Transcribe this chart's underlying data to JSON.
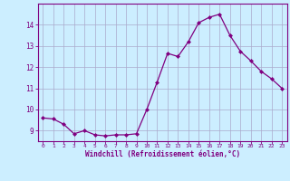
{
  "x": [
    0,
    1,
    2,
    3,
    4,
    5,
    6,
    7,
    8,
    9,
    10,
    11,
    12,
    13,
    14,
    15,
    16,
    17,
    18,
    19,
    20,
    21,
    22,
    23
  ],
  "y": [
    9.6,
    9.55,
    9.3,
    8.85,
    9.0,
    8.8,
    8.75,
    8.8,
    8.8,
    8.85,
    10.0,
    11.3,
    12.65,
    12.5,
    13.2,
    14.1,
    14.35,
    14.5,
    13.5,
    12.75,
    12.3,
    11.8,
    11.45,
    11.0
  ],
  "line_color": "#800080",
  "marker": "D",
  "marker_size": 2.0,
  "line_width": 0.9,
  "bg_color": "#cceeff",
  "grid_color": "#aaaacc",
  "xlabel": "Windchill (Refroidissement éolien,°C)",
  "xlabel_color": "#800080",
  "tick_color": "#800080",
  "ylim": [
    8.5,
    15.0
  ],
  "xlim": [
    -0.5,
    23.5
  ],
  "yticks": [
    9,
    10,
    11,
    12,
    13,
    14
  ],
  "xticks": [
    0,
    1,
    2,
    3,
    4,
    5,
    6,
    7,
    8,
    9,
    10,
    11,
    12,
    13,
    14,
    15,
    16,
    17,
    18,
    19,
    20,
    21,
    22,
    23
  ]
}
